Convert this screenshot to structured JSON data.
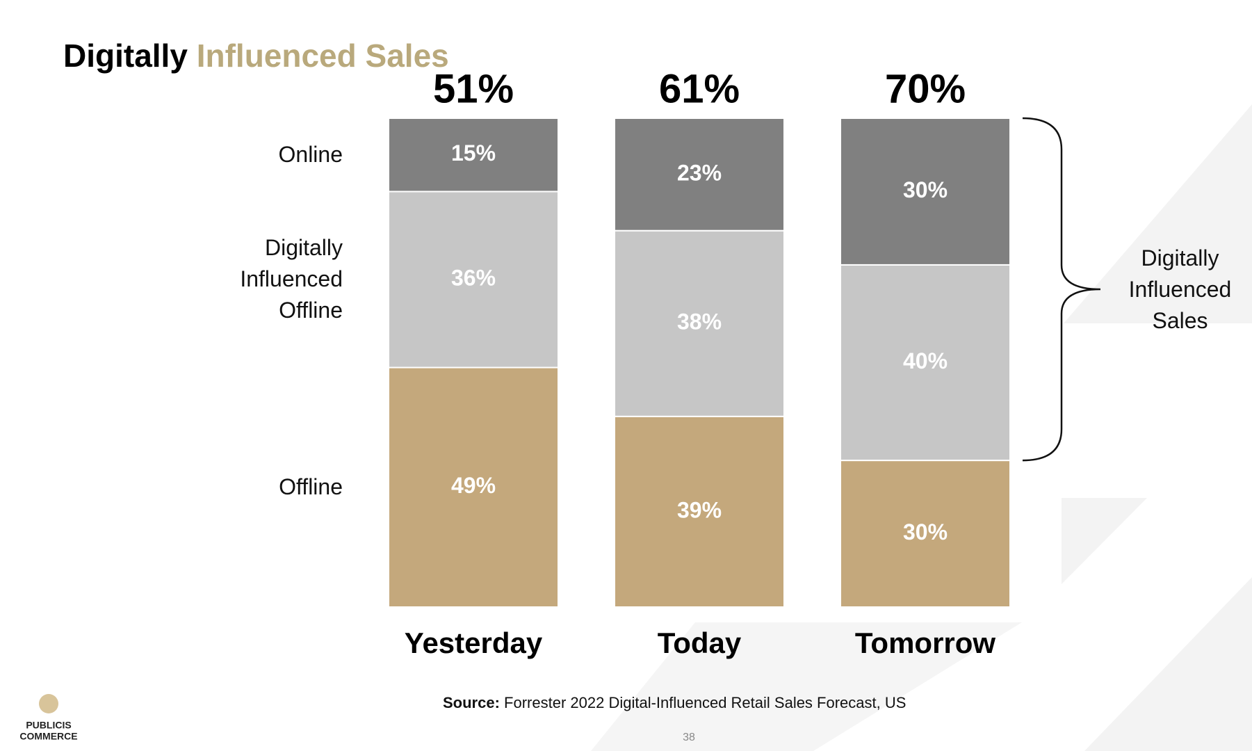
{
  "chart_data": {
    "type": "stacked_bar",
    "title_parts": [
      "Digitally",
      "Influenced Sales"
    ],
    "categories": [
      "Yesterday",
      "Today",
      "Tomorrow"
    ],
    "series": [
      {
        "name": "Offline",
        "color": "#c4a87c",
        "values": [
          49,
          39,
          30
        ],
        "value_labels": [
          "49%",
          "39%",
          "30%"
        ]
      },
      {
        "name": "Digitally Influenced Offline",
        "color": "#c6c6c6",
        "values": [
          36,
          38,
          40
        ],
        "value_labels": [
          "36%",
          "38%",
          "40%"
        ]
      },
      {
        "name": "Online",
        "color": "#808080",
        "values": [
          15,
          23,
          30
        ],
        "value_labels": [
          "15%",
          "23%",
          "30%"
        ]
      }
    ],
    "totals": {
      "values": [
        51,
        61,
        70
      ],
      "value_labels": [
        "51%",
        "61%",
        "70%"
      ]
    },
    "bracket_label": "Digitally Influenced Sales"
  },
  "source": {
    "label": "Source:",
    "text": "Forrester 2022 Digital-Influenced Retail Sales Forecast, US"
  },
  "page_number": "38",
  "logo": {
    "lines": [
      "PUBLICIS",
      "COMMERCE"
    ]
  }
}
